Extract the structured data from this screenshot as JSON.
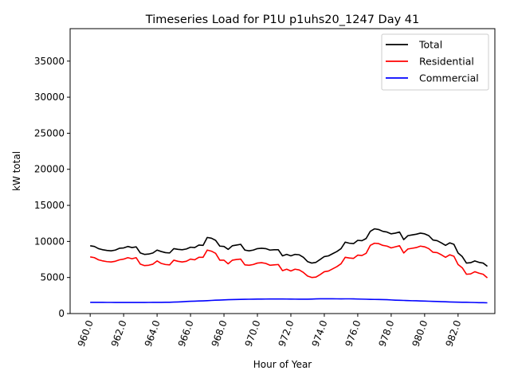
{
  "chart_data": {
    "type": "line",
    "title": "Timeseries Load for P1U p1uhs20_1247  Day 41",
    "xlabel": "Hour of Year",
    "ylabel": "kW total",
    "xlim": [
      958.8,
      984.2
    ],
    "ylim": [
      0,
      39500
    ],
    "xticks": [
      960,
      962,
      964,
      966,
      968,
      970,
      972,
      974,
      976,
      978,
      980,
      982
    ],
    "xtick_labels": [
      "960.0",
      "962.0",
      "964.0",
      "966.0",
      "968.0",
      "970.0",
      "972.0",
      "974.0",
      "976.0",
      "978.0",
      "980.0",
      "982.0"
    ],
    "yticks": [
      0,
      5000,
      10000,
      15000,
      20000,
      25000,
      30000,
      35000
    ],
    "ytick_labels": [
      "0",
      "5000",
      "10000",
      "15000",
      "20000",
      "25000",
      "30000",
      "35000"
    ],
    "legend_position": "top-right",
    "x_start": 960,
    "x_step": 0.25,
    "series": [
      {
        "name": "Total",
        "color": "#000000",
        "values": [
          9400,
          9300,
          9000,
          8850,
          8750,
          8700,
          8800,
          9050,
          9100,
          9300,
          9150,
          9250,
          8400,
          8200,
          8250,
          8400,
          8800,
          8600,
          8450,
          8400,
          9000,
          8900,
          8850,
          8950,
          9200,
          9150,
          9500,
          9450,
          10550,
          10450,
          10150,
          9350,
          9300,
          8900,
          9400,
          9500,
          9600,
          8800,
          8700,
          8800,
          9000,
          9050,
          9000,
          8800,
          8850,
          8850,
          8000,
          8200,
          8000,
          8200,
          8150,
          7800,
          7200,
          7000,
          7100,
          7500,
          7900,
          8000,
          8300,
          8600,
          9000,
          9900,
          9750,
          9700,
          10150,
          10100,
          10400,
          11400,
          11750,
          11650,
          11400,
          11300,
          11050,
          11150,
          11300,
          10250,
          10800,
          10900,
          11000,
          11150,
          11050,
          10800,
          10200,
          10100,
          9800,
          9450,
          9800,
          9600,
          8400,
          7900,
          7000,
          7050,
          7300,
          7100,
          7000,
          6550
        ]
      },
      {
        "name": "Residential",
        "color": "#ff0000",
        "values": [
          7850,
          7750,
          7450,
          7300,
          7200,
          7150,
          7250,
          7450,
          7550,
          7750,
          7600,
          7750,
          6850,
          6650,
          6700,
          6850,
          7300,
          6950,
          6800,
          6750,
          7400,
          7250,
          7150,
          7250,
          7550,
          7450,
          7800,
          7800,
          8800,
          8650,
          8350,
          7400,
          7400,
          6900,
          7400,
          7500,
          7550,
          6750,
          6700,
          6800,
          7000,
          7050,
          6950,
          6700,
          6750,
          6800,
          5950,
          6150,
          5900,
          6150,
          6050,
          5700,
          5200,
          5000,
          5050,
          5400,
          5800,
          5900,
          6200,
          6500,
          6900,
          7800,
          7700,
          7650,
          8100,
          8050,
          8350,
          9450,
          9750,
          9700,
          9450,
          9350,
          9100,
          9250,
          9400,
          8400,
          8950,
          9050,
          9150,
          9350,
          9250,
          9000,
          8500,
          8450,
          8150,
          7800,
          8150,
          7950,
          6800,
          6350,
          5450,
          5500,
          5800,
          5600,
          5450,
          4950
        ]
      },
      {
        "name": "Commercial",
        "color": "#0000ff",
        "values": [
          1550,
          1550,
          1550,
          1550,
          1545,
          1545,
          1540,
          1540,
          1540,
          1540,
          1540,
          1540,
          1540,
          1540,
          1545,
          1550,
          1550,
          1555,
          1560,
          1570,
          1590,
          1610,
          1640,
          1670,
          1700,
          1720,
          1740,
          1760,
          1790,
          1820,
          1850,
          1870,
          1900,
          1920,
          1940,
          1955,
          1965,
          1975,
          1985,
          1995,
          2005,
          2010,
          2015,
          2020,
          2020,
          2020,
          2020,
          2015,
          2010,
          2000,
          1995,
          1990,
          1995,
          2010,
          2030,
          2045,
          2050,
          2050,
          2045,
          2040,
          2035,
          2040,
          2040,
          2030,
          2015,
          2000,
          1985,
          1970,
          1960,
          1950,
          1940,
          1920,
          1890,
          1860,
          1840,
          1820,
          1800,
          1780,
          1770,
          1750,
          1730,
          1710,
          1690,
          1670,
          1650,
          1630,
          1610,
          1590,
          1580,
          1570,
          1560,
          1545,
          1530,
          1515,
          1505,
          1490
        ]
      }
    ]
  }
}
